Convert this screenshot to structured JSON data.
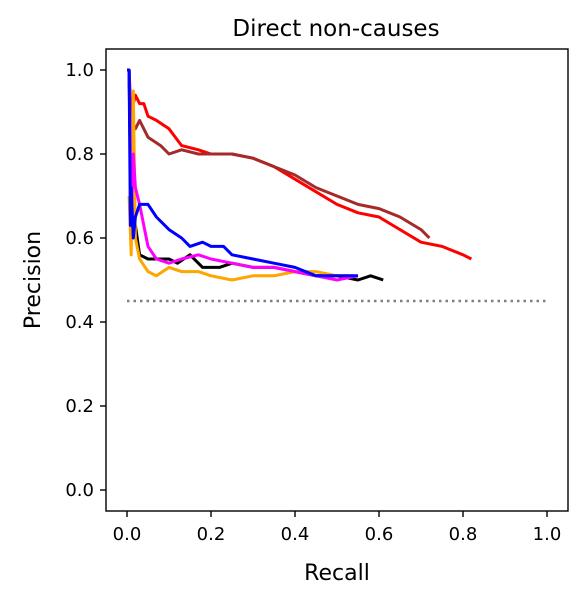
{
  "chart_data": {
    "type": "line",
    "title": "Direct non-causes",
    "xlabel": "Recall",
    "ylabel": "Precision",
    "xlim": [
      -0.05,
      1.05
    ],
    "ylim": [
      -0.05,
      1.05
    ],
    "xticks": [
      "0.0",
      "0.2",
      "0.4",
      "0.6",
      "0.8",
      "1.0"
    ],
    "yticks": [
      "0.0",
      "0.2",
      "0.4",
      "0.6",
      "0.8",
      "1.0"
    ],
    "grid": false,
    "legend": false,
    "series": [
      {
        "color": "#808080",
        "dash": "dotted",
        "x": [
          0.0,
          1.0
        ],
        "y": [
          0.45,
          0.45
        ]
      },
      {
        "color": "#ff0000",
        "x": [
          0.005,
          0.01,
          0.02,
          0.03,
          0.04,
          0.05,
          0.07,
          0.1,
          0.13,
          0.17,
          0.2,
          0.25,
          0.3,
          0.35,
          0.4,
          0.45,
          0.5,
          0.55,
          0.6,
          0.65,
          0.7,
          0.75,
          0.8,
          0.82
        ],
        "y": [
          0.97,
          0.9,
          0.94,
          0.92,
          0.92,
          0.89,
          0.88,
          0.86,
          0.82,
          0.81,
          0.8,
          0.8,
          0.79,
          0.77,
          0.74,
          0.71,
          0.68,
          0.66,
          0.65,
          0.62,
          0.59,
          0.58,
          0.56,
          0.55
        ]
      },
      {
        "color": "#a52a2a",
        "x": [
          0.005,
          0.01,
          0.02,
          0.03,
          0.05,
          0.08,
          0.1,
          0.13,
          0.17,
          0.2,
          0.25,
          0.3,
          0.35,
          0.4,
          0.45,
          0.5,
          0.55,
          0.6,
          0.65,
          0.7,
          0.72
        ],
        "y": [
          1.0,
          0.88,
          0.86,
          0.88,
          0.84,
          0.82,
          0.8,
          0.81,
          0.8,
          0.8,
          0.8,
          0.79,
          0.77,
          0.75,
          0.72,
          0.7,
          0.68,
          0.67,
          0.65,
          0.62,
          0.6
        ]
      },
      {
        "color": "#000000",
        "x": [
          0.005,
          0.01,
          0.02,
          0.03,
          0.05,
          0.07,
          0.1,
          0.12,
          0.15,
          0.18,
          0.22,
          0.25,
          0.3,
          0.35,
          0.4,
          0.45,
          0.5,
          0.55,
          0.58,
          0.61
        ],
        "y": [
          1.0,
          0.6,
          0.63,
          0.56,
          0.55,
          0.55,
          0.55,
          0.54,
          0.56,
          0.53,
          0.53,
          0.54,
          0.53,
          0.53,
          0.52,
          0.51,
          0.51,
          0.5,
          0.51,
          0.5
        ]
      },
      {
        "color": "#ffa500",
        "x": [
          0.005,
          0.01,
          0.015,
          0.02,
          0.03,
          0.05,
          0.07,
          0.1,
          0.13,
          0.17,
          0.2,
          0.25,
          0.3,
          0.35,
          0.4,
          0.45,
          0.5,
          0.54
        ],
        "y": [
          0.7,
          0.56,
          0.95,
          0.6,
          0.55,
          0.52,
          0.51,
          0.53,
          0.52,
          0.52,
          0.51,
          0.5,
          0.51,
          0.51,
          0.52,
          0.52,
          0.51,
          0.51
        ]
      },
      {
        "color": "#ff00ff",
        "x": [
          0.005,
          0.01,
          0.015,
          0.02,
          0.03,
          0.05,
          0.07,
          0.1,
          0.13,
          0.17,
          0.2,
          0.25,
          0.3,
          0.35,
          0.4,
          0.45,
          0.5,
          0.55
        ],
        "y": [
          1.0,
          0.65,
          0.8,
          0.72,
          0.68,
          0.58,
          0.55,
          0.54,
          0.55,
          0.56,
          0.55,
          0.54,
          0.53,
          0.53,
          0.52,
          0.51,
          0.5,
          0.51
        ]
      },
      {
        "color": "#0000ff",
        "x": [
          0.0,
          0.005,
          0.008,
          0.01,
          0.015,
          0.02,
          0.03,
          0.05,
          0.07,
          0.1,
          0.13,
          0.15,
          0.18,
          0.2,
          0.23,
          0.25,
          0.3,
          0.35,
          0.4,
          0.45,
          0.5,
          0.55
        ],
        "y": [
          1.0,
          1.0,
          0.63,
          0.72,
          0.6,
          0.65,
          0.68,
          0.68,
          0.65,
          0.62,
          0.6,
          0.58,
          0.59,
          0.58,
          0.58,
          0.56,
          0.55,
          0.54,
          0.53,
          0.51,
          0.51,
          0.51
        ]
      }
    ]
  }
}
